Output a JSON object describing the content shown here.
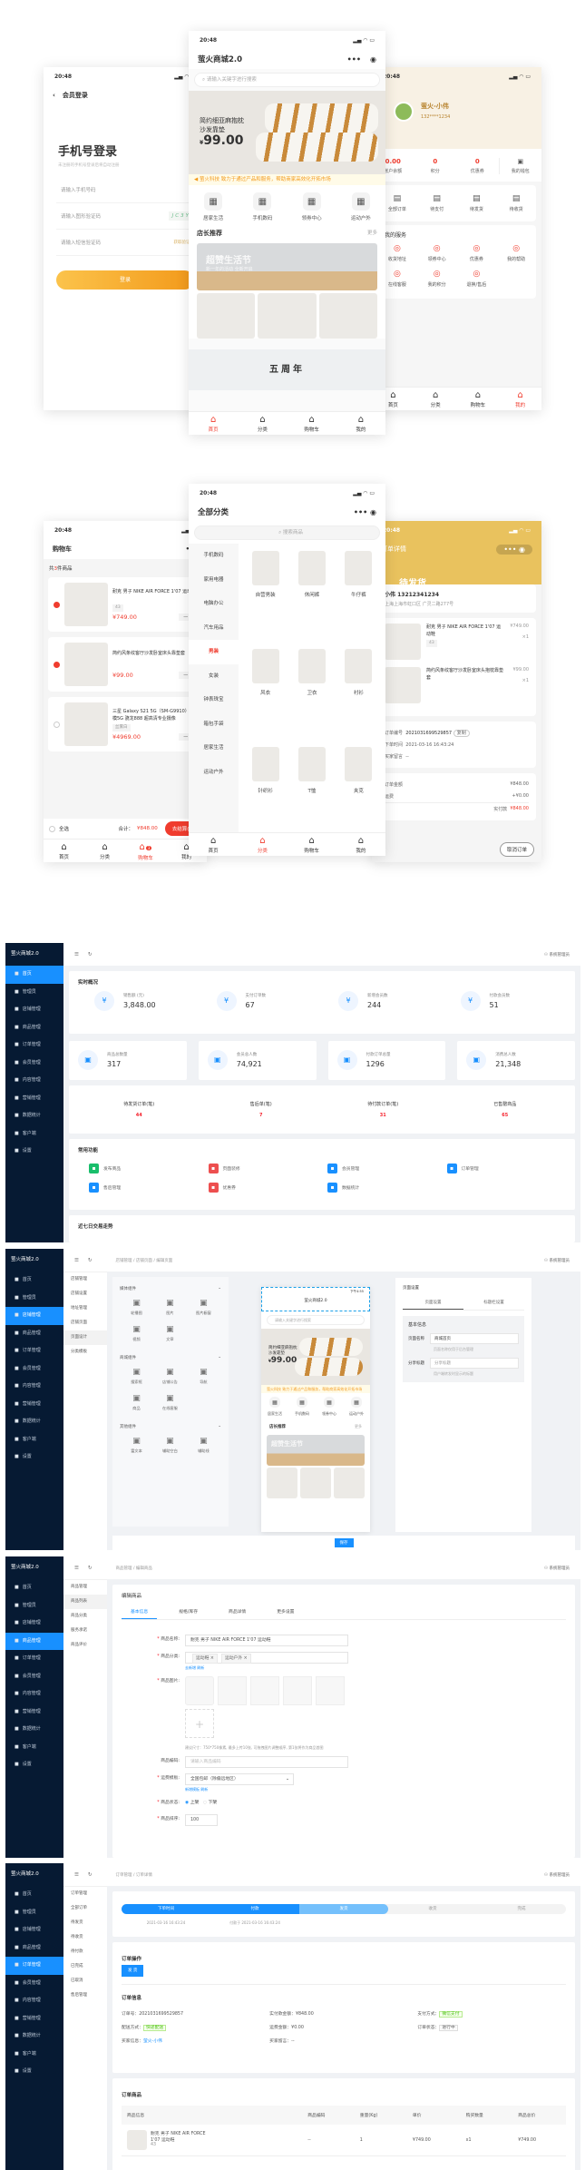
{
  "login": {
    "time": "20:48",
    "title": "会员登录",
    "heading": "手机号登录",
    "subtitle": "未注册的手机号登录后将自动注册",
    "phone_placeholder": "请输入手机号码",
    "captcha_placeholder": "请输入图形验证码",
    "captcha_text": "JC3Y",
    "sms_placeholder": "请输入短信验证码",
    "sms_button": "获取验证码",
    "submit": "登录"
  },
  "tabbar": [
    {
      "label": "首页",
      "icon": "home-icon"
    },
    {
      "label": "分类",
      "icon": "category-icon"
    },
    {
      "label": "购物车",
      "icon": "cart-icon"
    },
    {
      "label": "我的",
      "icon": "user-icon"
    }
  ],
  "home": {
    "time": "20:48",
    "title": "萤火商城2.0",
    "search_placeholder": "请输入关键字进行搜索",
    "banner": {
      "title_line1": "简约细亚麻抱枕",
      "title_line2": "沙发靠垫",
      "currency": "¥",
      "price": "99.00"
    },
    "notice": "萤火科技 致力于通过产品和服务，帮助商家高效化开拓市场",
    "nav": [
      {
        "label": "居家生活"
      },
      {
        "label": "手机数码"
      },
      {
        "label": "领券中心",
        "badge": "券"
      },
      {
        "label": "运动户外"
      }
    ],
    "section_title": "店长推荐",
    "more": "更多",
    "promo": {
      "title": "超赞生活节",
      "subtitle": "新一年的活动 全新开启"
    },
    "anniv": "五周年"
  },
  "profile": {
    "time": "20:48",
    "name": "萤火-小伟",
    "phone": "132****1234",
    "stats": [
      {
        "value": "0.00",
        "label": "账户余额"
      },
      {
        "value": "0",
        "label": "积分"
      },
      {
        "value": "0",
        "label": "优惠券"
      }
    ],
    "wallet": "我的钱包",
    "orders": [
      "全部订单",
      "待支付",
      "待发货",
      "待收货"
    ],
    "services_title": "我的服务",
    "services": [
      "收货地址",
      "领券中心",
      "优惠券",
      "我的帮助",
      "在线客服",
      "我的积分",
      "退换/售后"
    ]
  },
  "category": {
    "time": "20:48",
    "title": "全部分类",
    "search_placeholder": "搜索商品",
    "sidebar": [
      "手机数码",
      "家用电器",
      "电脑办公",
      "汽车用品",
      "男装",
      "女装",
      "钟表珠宝",
      "箱包手袋",
      "居家生活",
      "运动户外"
    ],
    "active": "男装",
    "items": [
      "自营男装",
      "休闲裤",
      "牛仔裤",
      "风衣",
      "卫衣",
      "衬衫",
      "针织衫",
      "T恤",
      "夹克"
    ]
  },
  "cart": {
    "time": "20:48",
    "title": "购物车",
    "count_prefix": "共",
    "count": "3",
    "count_suffix": "件商品",
    "items": [
      {
        "name": "耐克 男子 NIKE AIR FORCE 1'07 运动鞋",
        "spec": "43",
        "price": "¥749.00",
        "qty": "1",
        "checked": true
      },
      {
        "name": "简约风条纹客厅沙发卧室床头靠垫套",
        "spec": "",
        "price": "¥99.00",
        "qty": "1",
        "checked": true
      },
      {
        "name": "三星 Galaxy S21 5G（SM-G9910）双模5G 骁龙888 超高清专业摄像",
        "spec": "丝雾白",
        "price": "¥4969.00",
        "qty": "1",
        "checked": false
      }
    ],
    "select_all": "全选",
    "total_label": "合计：",
    "total": "¥848.00",
    "checkout": "去结算(2)",
    "badge": "3"
  },
  "order_detail": {
    "time": "20:48",
    "title": "订单详情",
    "status": "待发货",
    "receiver": "小伟 13212341234",
    "address": "上海上海市虹口区 广灵二路277号",
    "items": [
      {
        "name": "耐克 男子 NIKE AIR FORCE 1'07 运动鞋",
        "spec": "43",
        "price": "¥749.00",
        "qty": "×1"
      },
      {
        "name": "简约风条纹客厅沙发卧室床头抱枕靠垫套",
        "spec": "",
        "price": "¥99.00",
        "qty": "×1"
      }
    ],
    "order_no_label": "订单编号",
    "order_no": "2021031699529857",
    "copy": "复制",
    "time_label": "下单时间",
    "order_time": "2021-03-16 16:43:24",
    "remark_label": "买家留言",
    "remark": "--",
    "amount_label": "订单金额",
    "amount": "¥848.00",
    "freight_label": "运费",
    "freight": "+¥0.00",
    "paid_label": "实付款",
    "paid": "¥848.00",
    "cancel": "取消订单"
  },
  "admin": {
    "brand": "萤火商城2.0",
    "user": "系统管理员",
    "menu": [
      {
        "label": "首页",
        "icon": "home-icon"
      },
      {
        "label": "管理员",
        "icon": "admin-icon"
      },
      {
        "label": "店铺管理",
        "icon": "store-icon"
      },
      {
        "label": "商品管理",
        "icon": "goods-icon"
      },
      {
        "label": "订单管理",
        "icon": "order-icon"
      },
      {
        "label": "会员管理",
        "icon": "member-icon"
      },
      {
        "label": "内容管理",
        "icon": "content-icon"
      },
      {
        "label": "营销管理",
        "icon": "marketing-icon"
      },
      {
        "label": "数据统计",
        "icon": "chart-icon"
      },
      {
        "label": "客户端",
        "icon": "client-icon"
      },
      {
        "label": "设置",
        "icon": "gear-icon"
      }
    ]
  },
  "dashboard": {
    "overview_title": "实时概况",
    "overview": [
      {
        "label": "销售额 (元)",
        "value": "3,848.00"
      },
      {
        "label": "支付订单数",
        "value": "67"
      },
      {
        "label": "新增会员数",
        "value": "244"
      },
      {
        "label": "付款会员数",
        "value": "51"
      }
    ],
    "cards": [
      {
        "label": "商品总数量",
        "value": "317"
      },
      {
        "label": "会员总人数",
        "value": "74,921"
      },
      {
        "label": "付款订单总量",
        "value": "1296"
      },
      {
        "label": "消费总人数",
        "value": "21,348"
      }
    ],
    "todo": [
      {
        "label": "待发货订单(笔)",
        "value": "44"
      },
      {
        "label": "售后单(笔)",
        "value": "7"
      },
      {
        "label": "待付款订单(笔)",
        "value": "31"
      },
      {
        "label": "已售罄商品",
        "value": "65"
      }
    ],
    "funcs_title": "常用功能",
    "funcs": [
      {
        "label": "发布商品",
        "color": "#19be6b"
      },
      {
        "label": "页面装修",
        "color": "#ed4f4f"
      },
      {
        "label": "会员管理",
        "color": "#1890ff"
      },
      {
        "label": "订单管理",
        "color": "#1890ff"
      },
      {
        "label": "售后管理",
        "color": "#1890ff"
      },
      {
        "label": "优惠券",
        "color": "#ed4f4f"
      },
      {
        "label": "数据统计",
        "color": "#1890ff"
      }
    ],
    "trend_title": "近七日交易走势"
  },
  "designer": {
    "breadcrumb": "店铺管理 / 店铺页面 / 编辑页面",
    "submenu": [
      "店铺管理",
      "店铺设置",
      "地址管理",
      "店铺页面",
      "页面设计",
      "分类模板"
    ],
    "groups": [
      {
        "title": "媒体组件",
        "items": [
          "轮播图",
          "图片",
          "图片橱窗",
          "视频",
          "文章"
        ]
      },
      {
        "title": "商城组件",
        "items": [
          "搜索框",
          "店铺公告",
          "导航",
          "商品",
          "在线客服"
        ]
      },
      {
        "title": "其他组件",
        "items": [
          "富文本",
          "辅助空白",
          "辅助线"
        ]
      }
    ],
    "preview": {
      "time": "下午4:55",
      "title": "萤火商城2.0",
      "search": "请输入关键字进行搜索",
      "nav": [
        "居家生活",
        "手机数码",
        "领券中心",
        "运动户外"
      ],
      "section": "店长推荐",
      "more": "更多"
    },
    "settings": {
      "title": "页面设置",
      "tabs": [
        "页面设置",
        "标题栏设置"
      ],
      "basic": "基本信息",
      "name_label": "页面名称",
      "name_value": "商城首页",
      "name_hint": "页面名称仅用于后台管理",
      "share_label": "分享标题",
      "share_placeholder": "分享标题",
      "share_hint": "用户端转发时显示的标题"
    },
    "save": "保存"
  },
  "goods_edit": {
    "breadcrumb": "商品管理 / 编辑商品",
    "submenu": [
      "商品管理",
      "商品列表",
      "商品分类",
      "服务承诺",
      "商品评价"
    ],
    "title": "编辑商品",
    "tabs": [
      "基本信息",
      "规格/库存",
      "商品详情",
      "更多设置"
    ],
    "name_label": "商品名称:",
    "name_value": "耐克 男子 NIKE AIR FORCE 1'07 运动鞋",
    "cat_label": "商品分类:",
    "cat_tags": [
      "运动鞋",
      "运动户外"
    ],
    "cat_links": "去新增 刷新",
    "img_label": "商品图片:",
    "img_hint": "建议尺寸：750*750像素, 最多上传10张, 可拖拽图片调整顺序, 第1张将作为商品首图",
    "code_label": "商品编码:",
    "code_placeholder": "请输入商品编码",
    "freight_label": "运费模板:",
    "freight_value": "全国包邮（除偏远地区）",
    "freight_links": "新增模板 刷新",
    "status_label": "商品状态:",
    "status_on": "上架",
    "status_off": "下架",
    "sort_label": "商品排序:",
    "sort_value": "100"
  },
  "order_admin": {
    "breadcrumb": "订单管理 / 订单详情",
    "submenu": [
      "订单管理",
      "全部订单",
      "待发货",
      "待收货",
      "待付款",
      "已完成",
      "已取消",
      "售后管理"
    ],
    "steps": [
      "下单时间",
      "付款",
      "发货",
      "收货",
      "完成"
    ],
    "step_dates": [
      "2021-03-16 16:43:24",
      "付款于 2021-03-16 16:43:24"
    ],
    "ops_title": "订单操作",
    "ship_button": "发 货",
    "info_title": "订单信息",
    "info": [
      {
        "label": "订单号：",
        "value": "2021031699529857"
      },
      {
        "label": "实付款金额：",
        "value": "¥848.00"
      },
      {
        "label": "支付方式：",
        "value": "微信支付"
      },
      {
        "label": "配送方式：",
        "value": "快递配送"
      },
      {
        "label": "运费金额：",
        "value": "¥0.00"
      },
      {
        "label": "订单状态：",
        "value": "进行中"
      },
      {
        "label": "买家信息：",
        "value": "萤火-小伟"
      },
      {
        "label": "买家留言：",
        "value": "--"
      }
    ],
    "goods_title": "订单商品",
    "columns": [
      "商品信息",
      "商品编码",
      "重量(Kg)",
      "单价",
      "购买数量",
      "商品总价"
    ],
    "row": {
      "name": "耐克 男子 NIKE AIR FORCE 1'07 运动鞋",
      "spec": "43",
      "code": "--",
      "weight": "1",
      "price": "¥749.00",
      "qty": "x1",
      "total": "¥749.00"
    }
  },
  "colors": {
    "accent": "#f03c2e",
    "admin_primary": "#1890ff",
    "admin_sidebar": "#061a33",
    "login_button": "#f39a1b",
    "order_header": "#e9c25e"
  }
}
